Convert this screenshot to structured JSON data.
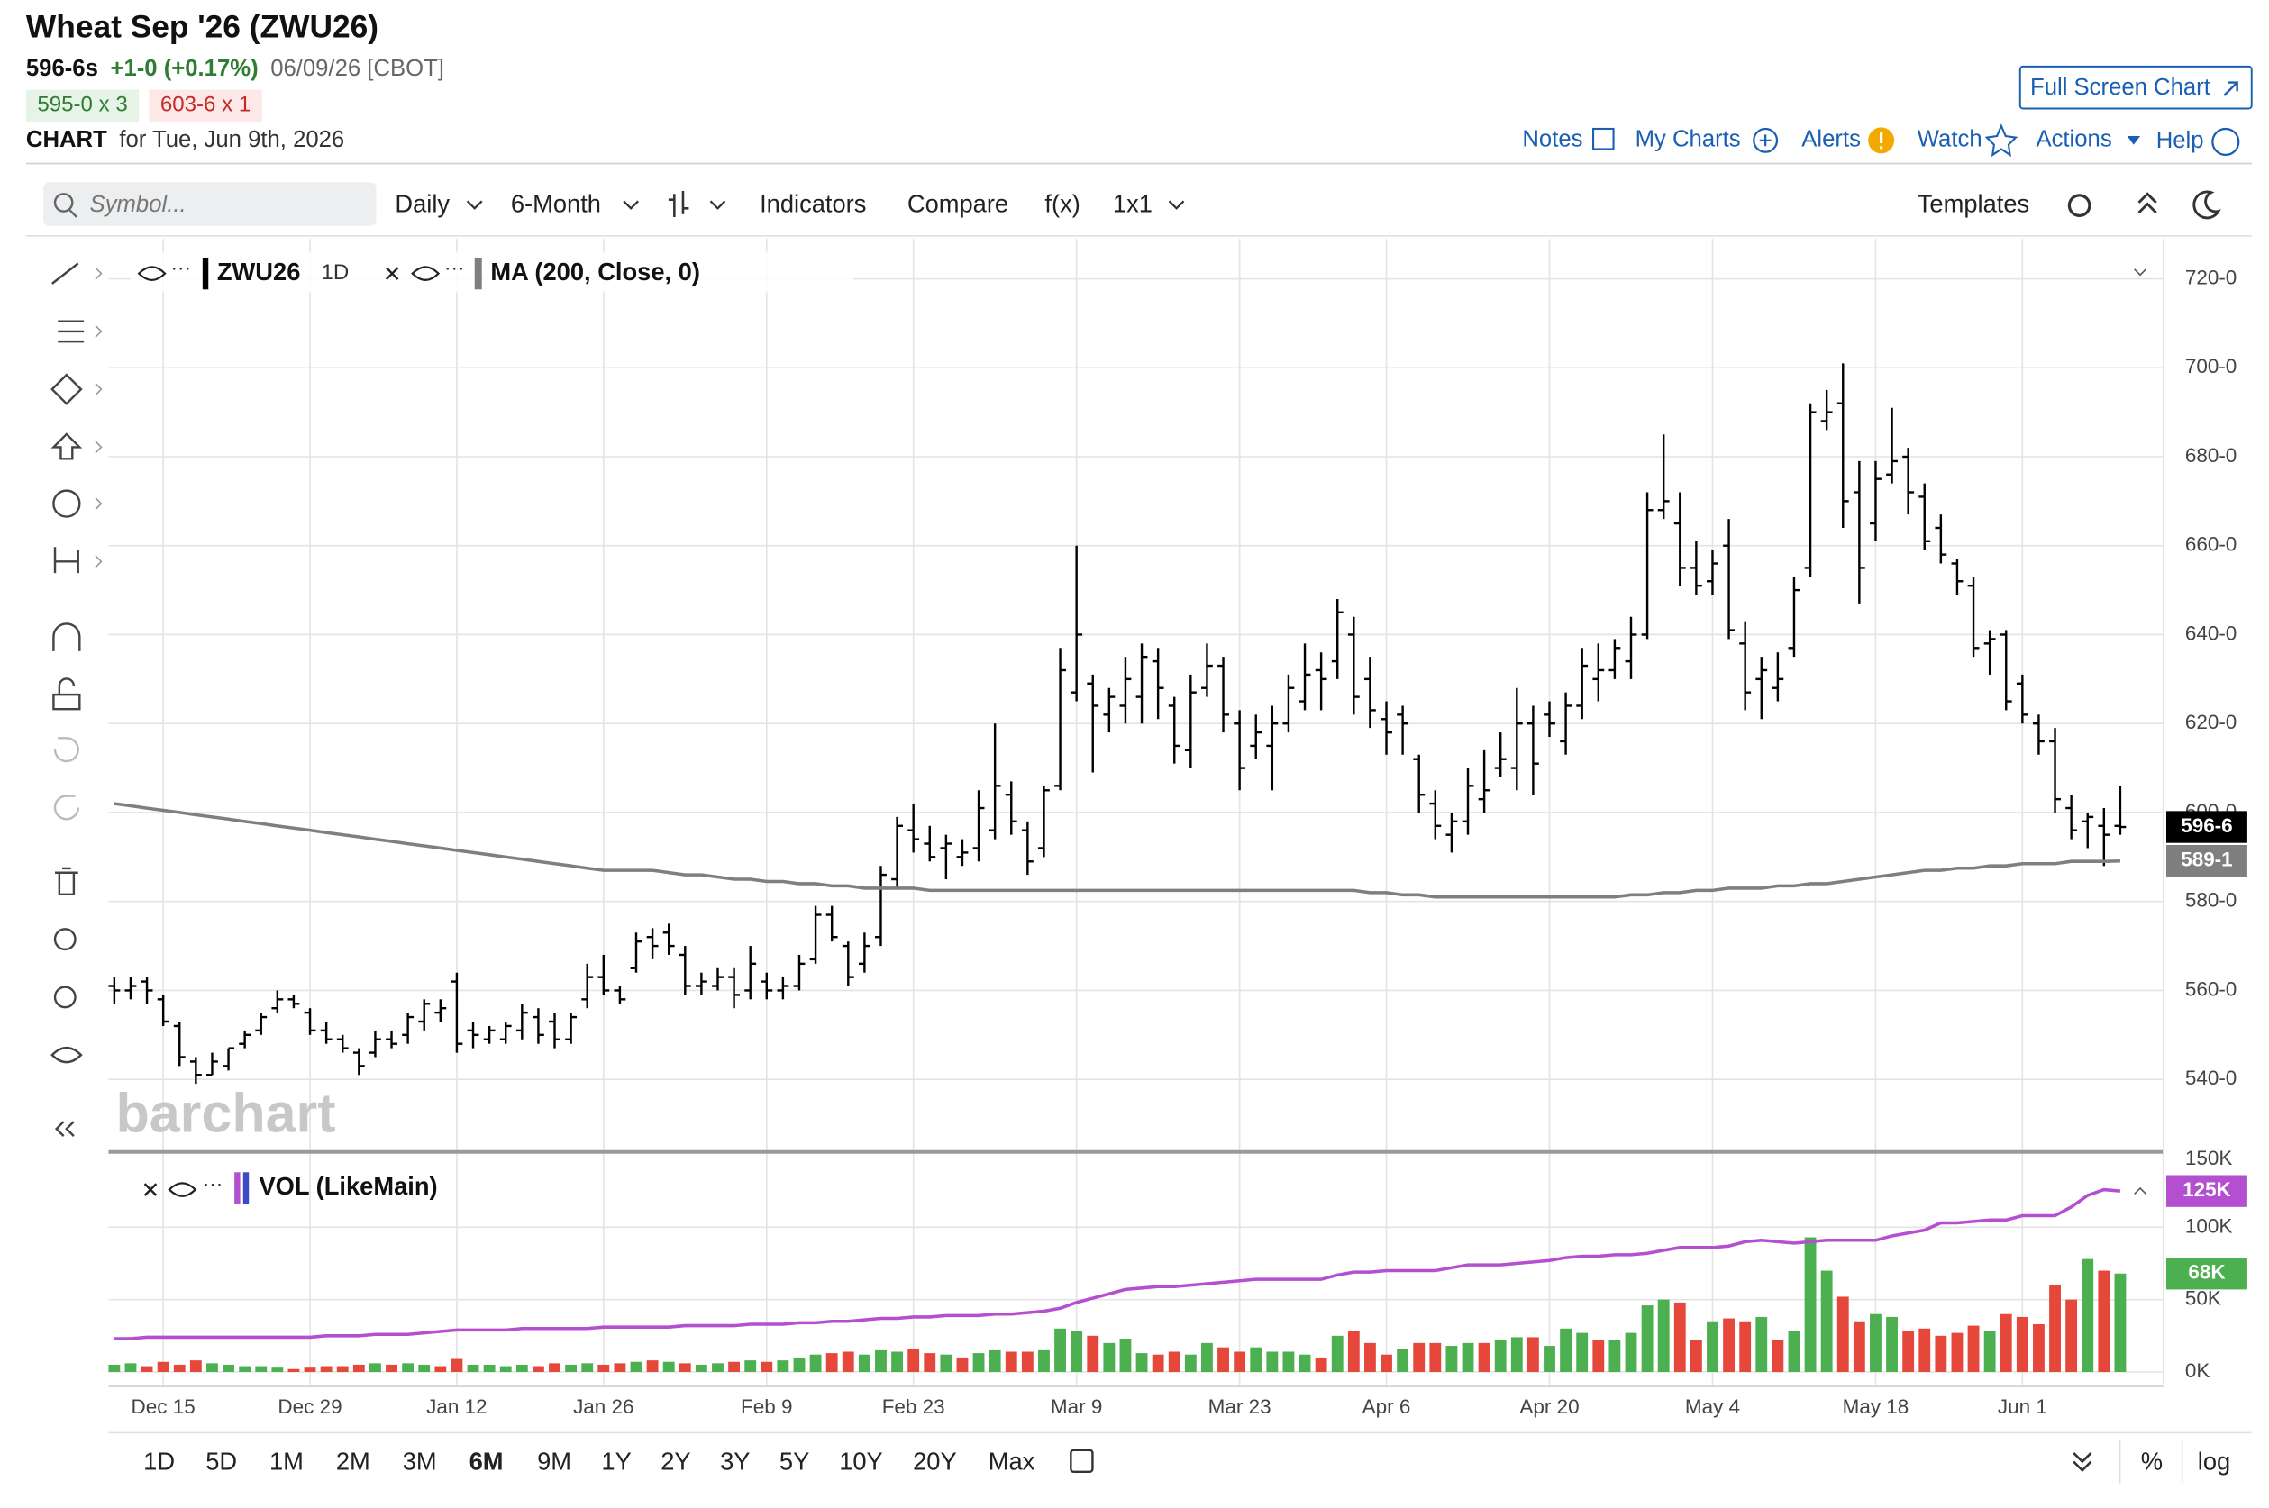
{
  "header": {
    "title": "Wheat Sep '26 (ZWU26)",
    "last": "596-6s",
    "change": "+1-0 (+0.17%)",
    "date": "06/09/26 [CBOT]",
    "bid": "595-0 x 3",
    "ask": "603-6 x 1",
    "chart_label": "CHART",
    "chart_date": "for Tue, Jun 9th, 2026",
    "full_screen": "Full Screen Chart"
  },
  "nav": [
    "Notes",
    "My Charts",
    "Alerts",
    "Watch",
    "Actions",
    "Help"
  ],
  "toolbar": {
    "symbol_placeholder": "Symbol...",
    "items": [
      "Daily",
      "6-Month",
      "Indicators",
      "Compare",
      "f(x)",
      "1x1"
    ],
    "templates": "Templates"
  },
  "ranges": {
    "items": [
      "1D",
      "5D",
      "1M",
      "2M",
      "3M",
      "6M",
      "9M",
      "1Y",
      "2Y",
      "3Y",
      "5Y",
      "10Y",
      "20Y",
      "Max"
    ],
    "active": 5
  },
  "scale_options": [
    "%",
    "log"
  ],
  "watermark": "barchart",
  "chart_data": {
    "type": "ohlc",
    "interval": "1D",
    "grid": true,
    "categories": [
      null,
      null,
      null,
      "Dec 15",
      null,
      null,
      null,
      null,
      null,
      null,
      null,
      null,
      "Dec 29",
      null,
      null,
      null,
      null,
      null,
      null,
      null,
      null,
      "Jan 12",
      null,
      null,
      null,
      null,
      null,
      null,
      null,
      null,
      "Jan 26",
      null,
      null,
      null,
      null,
      null,
      null,
      null,
      null,
      null,
      "Feb 9",
      null,
      null,
      null,
      null,
      null,
      null,
      null,
      null,
      "Feb 23",
      null,
      null,
      null,
      null,
      null,
      null,
      null,
      null,
      null,
      "Mar 9",
      null,
      null,
      null,
      null,
      null,
      null,
      null,
      null,
      null,
      "Mar 23",
      null,
      null,
      null,
      null,
      null,
      null,
      null,
      null,
      "Apr 6",
      null,
      null,
      null,
      null,
      null,
      null,
      null,
      null,
      null,
      "Apr 20",
      null,
      null,
      null,
      null,
      null,
      null,
      null,
      null,
      null,
      "May 4",
      null,
      null,
      null,
      null,
      null,
      null,
      null,
      null,
      null,
      "May 18",
      null,
      null,
      null,
      null,
      null,
      null,
      null,
      null,
      "Jun 1",
      null,
      null,
      null,
      null,
      null,
      null
    ],
    "ylim": [
      524,
      729
    ],
    "yticks": [
      {
        "value": 540,
        "label": "540-0"
      },
      {
        "value": 560,
        "label": "560-0"
      },
      {
        "value": 580,
        "label": "580-0"
      },
      {
        "value": 600,
        "label": "600-0"
      },
      {
        "value": 620,
        "label": "620-0"
      },
      {
        "value": 640,
        "label": "640-0"
      },
      {
        "value": 660,
        "label": "660-0"
      },
      {
        "value": 680,
        "label": "680-0"
      },
      {
        "value": 700,
        "label": "700-0"
      },
      {
        "value": 720,
        "label": "720-0"
      }
    ],
    "y2lim": [
      -10000,
      151000
    ],
    "y2ticks": [
      {
        "value": 0,
        "label": "0K"
      },
      {
        "value": 50000,
        "label": "50K"
      },
      {
        "value": 100000,
        "label": "100K"
      },
      {
        "value": 150000,
        "label": "150K"
      }
    ],
    "series": [
      {
        "name": "ZWU26",
        "color": "#000000",
        "last_label": "596-6",
        "open": [
          561,
          560,
          562,
          558,
          552,
          544,
          541,
          543,
          548,
          551,
          556,
          558,
          555,
          551,
          549,
          546,
          546,
          549,
          550,
          553,
          555,
          562,
          551,
          549,
          549,
          551,
          554,
          553,
          549,
          558,
          563,
          560,
          565,
          572,
          573,
          568,
          561,
          561,
          563,
          560,
          562,
          560,
          561,
          567,
          577,
          570,
          566,
          572,
          585,
          596,
          593,
          592,
          590,
          592,
          596,
          604,
          596,
          592,
          606,
          627,
          629,
          622,
          624,
          626,
          634,
          624,
          614,
          628,
          633,
          620,
          615,
          615,
          620,
          625,
          632,
          634,
          640,
          630,
          621,
          622,
          612,
          602,
          595,
          598,
          603,
          610,
          610,
          620,
          622,
          616,
          624,
          630,
          632,
          634,
          640,
          668,
          665,
          655,
          652,
          660,
          638,
          630,
          628,
          637,
          655,
          688,
          692,
          672,
          665,
          676,
          680,
          671,
          664,
          656,
          651,
          638,
          640,
          629,
          620,
          616,
          601,
          598,
          597,
          597
        ],
        "high": [
          563,
          563,
          563,
          559,
          553,
          545,
          546,
          547,
          551,
          555,
          560,
          559,
          556,
          553,
          550,
          547,
          551,
          551,
          555,
          558,
          558,
          564,
          553,
          552,
          553,
          557,
          556,
          555,
          555,
          566,
          568,
          561,
          573,
          574,
          575,
          570,
          564,
          565,
          565,
          570,
          564,
          563,
          568,
          579,
          579,
          571,
          573,
          588,
          599,
          602,
          597,
          595,
          594,
          605,
          620,
          607,
          598,
          606,
          637,
          660,
          631,
          628,
          635,
          638,
          637,
          626,
          631,
          638,
          635,
          623,
          622,
          624,
          631,
          638,
          636,
          648,
          644,
          635,
          625,
          624,
          613,
          605,
          600,
          610,
          614,
          618,
          628,
          624,
          625,
          627,
          637,
          638,
          639,
          644,
          672,
          685,
          672,
          661,
          659,
          666,
          643,
          635,
          636,
          653,
          692,
          695,
          701,
          679,
          679,
          691,
          682,
          674,
          667,
          657,
          653,
          641,
          641,
          631,
          622,
          619,
          604,
          600,
          601,
          606
        ],
        "low": [
          557,
          558,
          557,
          552,
          543,
          539,
          541,
          542,
          547,
          550,
          555,
          556,
          550,
          548,
          546,
          541,
          545,
          547,
          548,
          551,
          553,
          546,
          547,
          548,
          548,
          549,
          548,
          547,
          548,
          556,
          559,
          557,
          564,
          567,
          568,
          559,
          559,
          560,
          556,
          558,
          558,
          558,
          560,
          566,
          571,
          561,
          564,
          570,
          583,
          591,
          589,
          585,
          588,
          589,
          594,
          595,
          586,
          590,
          605,
          625,
          609,
          618,
          620,
          620,
          621,
          611,
          610,
          626,
          618,
          605,
          612,
          605,
          618,
          623,
          623,
          630,
          622,
          619,
          613,
          613,
          600,
          594,
          591,
          595,
          600,
          608,
          605,
          604,
          617,
          613,
          621,
          625,
          630,
          630,
          639,
          666,
          651,
          649,
          649,
          639,
          623,
          621,
          625,
          635,
          653,
          686,
          664,
          647,
          661,
          674,
          667,
          659,
          656,
          649,
          635,
          631,
          623,
          620,
          613,
          600,
          594,
          592,
          588,
          595
        ],
        "close": [
          560,
          561,
          560,
          553,
          545,
          541,
          544,
          547,
          550,
          554,
          558,
          557,
          551,
          549,
          547,
          543,
          549,
          548,
          554,
          557,
          556,
          548,
          550,
          551,
          552,
          555,
          550,
          549,
          554,
          563,
          560,
          558,
          571,
          570,
          570,
          561,
          562,
          563,
          559,
          566,
          560,
          561,
          566,
          577,
          572,
          563,
          570,
          586,
          597,
          594,
          590,
          593,
          591,
          601,
          606,
          598,
          589,
          605,
          632,
          640,
          624,
          626,
          630,
          635,
          628,
          615,
          627,
          633,
          622,
          610,
          618,
          620,
          628,
          631,
          630,
          645,
          626,
          623,
          618,
          620,
          604,
          597,
          598,
          606,
          605,
          612,
          620,
          611,
          620,
          624,
          633,
          632,
          637,
          640,
          668,
          670,
          655,
          651,
          656,
          641,
          627,
          632,
          630,
          650,
          690,
          690,
          670,
          655,
          675,
          679,
          672,
          661,
          658,
          652,
          637,
          639,
          625,
          622,
          616,
          603,
          596,
          599,
          595,
          596.75
        ]
      },
      {
        "name": "MA (200, Close, 0)",
        "color": "#7f7f7f",
        "last_label": "589-1",
        "values": [
          602,
          601.5,
          601,
          600.5,
          600,
          599.5,
          599,
          598.5,
          598,
          597.5,
          597,
          596.5,
          596,
          595.5,
          595,
          594.5,
          594,
          593.5,
          593,
          592.5,
          592,
          591.5,
          591,
          590.5,
          590,
          589.5,
          589,
          588.5,
          588,
          587.5,
          587,
          587,
          587,
          587,
          586.5,
          586,
          586,
          585.5,
          585,
          585,
          584.5,
          584.5,
          584,
          584,
          583.5,
          583.5,
          583,
          583,
          583,
          583,
          582.5,
          582.5,
          582.5,
          582.5,
          582.5,
          582.5,
          582.5,
          582.5,
          582.5,
          582.5,
          582.5,
          582.5,
          582.5,
          582.5,
          582.5,
          582.5,
          582.5,
          582.5,
          582.5,
          582.5,
          582.5,
          582.5,
          582.5,
          582.5,
          582.5,
          582.5,
          582.5,
          582,
          582,
          581.5,
          581.5,
          581,
          581,
          581,
          581,
          581,
          581,
          581,
          581,
          581,
          581,
          581,
          581,
          581.5,
          581.5,
          582,
          582,
          582.5,
          582.5,
          583,
          583,
          583,
          583.5,
          583.5,
          584,
          584,
          584.5,
          585,
          585.5,
          586,
          586.5,
          587,
          587,
          587.5,
          587.5,
          588,
          588,
          588.5,
          588.5,
          588.5,
          589,
          589,
          589,
          589.125
        ]
      },
      {
        "name": "VOL (LikeMain)",
        "axis": "y2",
        "up_color": "#4caf50",
        "down_color": "#e5483b",
        "last_label": "68K",
        "values": [
          5000,
          6000,
          4000,
          7000,
          5000,
          8000,
          6000,
          5000,
          4000,
          4000,
          3000,
          2000,
          3000,
          4000,
          4000,
          5000,
          6000,
          5000,
          6000,
          5000,
          4000,
          9000,
          5000,
          5000,
          4000,
          5000,
          4000,
          6000,
          5000,
          6000,
          5000,
          6000,
          7000,
          8000,
          7000,
          6000,
          5000,
          6000,
          7000,
          8000,
          7000,
          8000,
          10000,
          12000,
          13000,
          14000,
          12000,
          15000,
          14000,
          16000,
          13000,
          12000,
          10000,
          13000,
          15000,
          14000,
          14000,
          15000,
          30000,
          28000,
          25000,
          20000,
          23000,
          13000,
          12000,
          14000,
          12000,
          20000,
          17000,
          14000,
          17000,
          14000,
          14000,
          12000,
          10000,
          25000,
          28000,
          20000,
          12000,
          16000,
          20000,
          20000,
          18000,
          20000,
          20000,
          22000,
          24000,
          24000,
          18000,
          30000,
          27000,
          22000,
          22000,
          27000,
          46000,
          50000,
          48000,
          22000,
          35000,
          37000,
          35000,
          38000,
          22000,
          28000,
          93000,
          70000,
          52000,
          35000,
          40000,
          38000,
          28000,
          30000,
          25000,
          27000,
          32000,
          28000,
          40000,
          38000,
          33000,
          60000,
          50000,
          78000,
          70000,
          68000
        ]
      },
      {
        "axis": "y2",
        "color": "#b44fd0",
        "last_label": "125K",
        "values": [
          23000,
          23000,
          24000,
          24000,
          24000,
          24000,
          24000,
          24000,
          24000,
          24000,
          24000,
          24000,
          24000,
          25000,
          25000,
          25000,
          26000,
          26000,
          26000,
          27000,
          28000,
          29000,
          29000,
          29000,
          29000,
          30000,
          30000,
          30000,
          30000,
          30000,
          31000,
          31000,
          31000,
          31000,
          31000,
          32000,
          32000,
          32000,
          32000,
          33000,
          33000,
          33000,
          34000,
          34000,
          35000,
          35000,
          36000,
          37000,
          37000,
          38000,
          38000,
          39000,
          39000,
          39000,
          40000,
          40000,
          41000,
          42000,
          44000,
          48000,
          51000,
          54000,
          57000,
          58000,
          59000,
          59000,
          60000,
          61000,
          62000,
          63000,
          64000,
          64000,
          64000,
          64000,
          64000,
          67000,
          69000,
          69000,
          70000,
          70000,
          70000,
          70000,
          72000,
          74000,
          74000,
          74000,
          75000,
          76000,
          77000,
          79000,
          80000,
          80000,
          81000,
          81000,
          82000,
          84000,
          86000,
          86000,
          86000,
          87000,
          90000,
          91000,
          90000,
          89000,
          90000,
          91000,
          91000,
          91000,
          91000,
          94000,
          96000,
          98000,
          103000,
          103000,
          104000,
          105000,
          105000,
          108000,
          108000,
          108000,
          114000,
          122000,
          126000,
          125000
        ]
      }
    ]
  }
}
